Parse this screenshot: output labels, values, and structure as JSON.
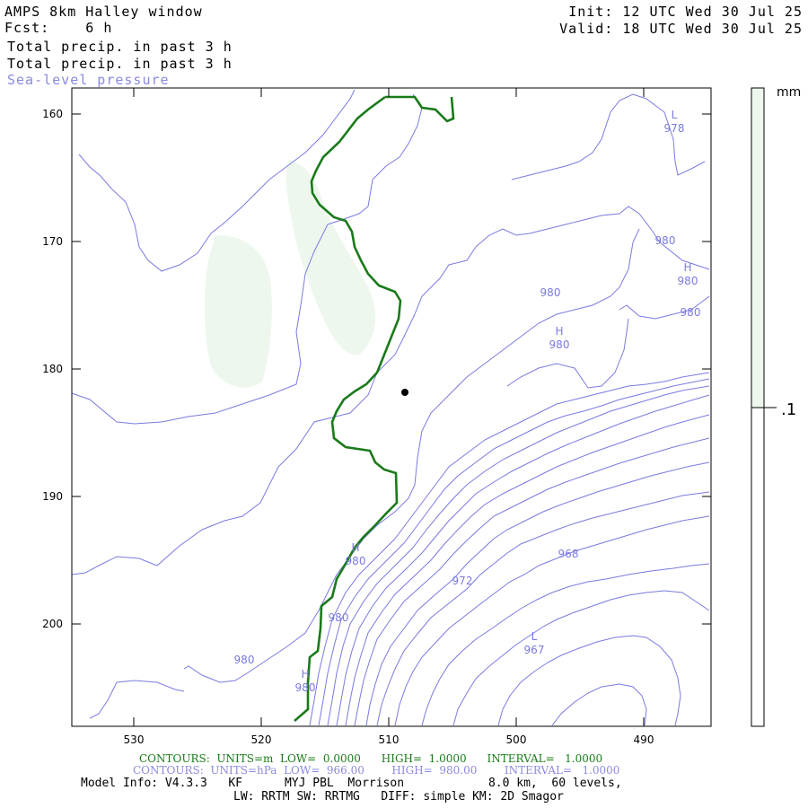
{
  "header": {
    "line1_left": "AMPS 8km Halley window",
    "line2_left": "Fcst:    6 h",
    "line3_left": "Total precip. in past 3 h",
    "line4_left": "Total precip. in past 3 h",
    "line5_left": "Sea-level pressure",
    "init": "Init: 12 UTC Wed 30 Jul 25",
    "valid": "Valid: 18 UTC Wed 30 Jul 25"
  },
  "colorbar": {
    "unit": "mm",
    "tick_label": ".1",
    "tick_value": 0.1,
    "fill_color": "#eef7ee"
  },
  "map": {
    "y_ticks": [
      "160",
      "170",
      "180",
      "190",
      "200"
    ],
    "x_ticks": [
      "530",
      "520",
      "510",
      "500",
      "490"
    ],
    "station_marker": "station-dot",
    "pressure_labels": [
      {
        "id": "L",
        "text": "L"
      },
      {
        "id": "978",
        "text": "978"
      },
      {
        "id": "980a",
        "text": "980"
      },
      {
        "id": "H1",
        "text": "H"
      },
      {
        "id": "980b",
        "text": "980"
      },
      {
        "id": "980c",
        "text": "980"
      },
      {
        "id": "980d",
        "text": "980"
      },
      {
        "id": "H2",
        "text": "H"
      },
      {
        "id": "980e",
        "text": "980"
      },
      {
        "id": "H3",
        "text": "H"
      },
      {
        "id": "980f",
        "text": "980"
      },
      {
        "id": "972",
        "text": "972"
      },
      {
        "id": "968",
        "text": "968"
      },
      {
        "id": "980g",
        "text": "980"
      },
      {
        "id": "L2",
        "text": "L"
      },
      {
        "id": "967",
        "text": "967"
      },
      {
        "id": "980h",
        "text": "980"
      },
      {
        "id": "H4",
        "text": "H"
      },
      {
        "id": "980i",
        "text": "980"
      }
    ],
    "colors": {
      "isobar": "#7a7ae0",
      "coast": "#1a7a1a",
      "precip": "#eef7ee"
    }
  },
  "footer": {
    "contours_green": "CONTOURS:  UNITS=m  LOW=  0.0000      HIGH=  1.0000      INTERVAL=   1.0000",
    "contours_blue": "CONTOURS:  UNITS=hPa  LOW=  966.00        HIGH=  980.00        INTERVAL=   1.0000",
    "model_info": "Model Info: V4.3.3   KF      MYJ PBL  Morrison            8.0 km,  60 levels,",
    "physics": "LW: RRTM SW: RRTMG   DIFF: simple KM: 2D Smagor"
  }
}
